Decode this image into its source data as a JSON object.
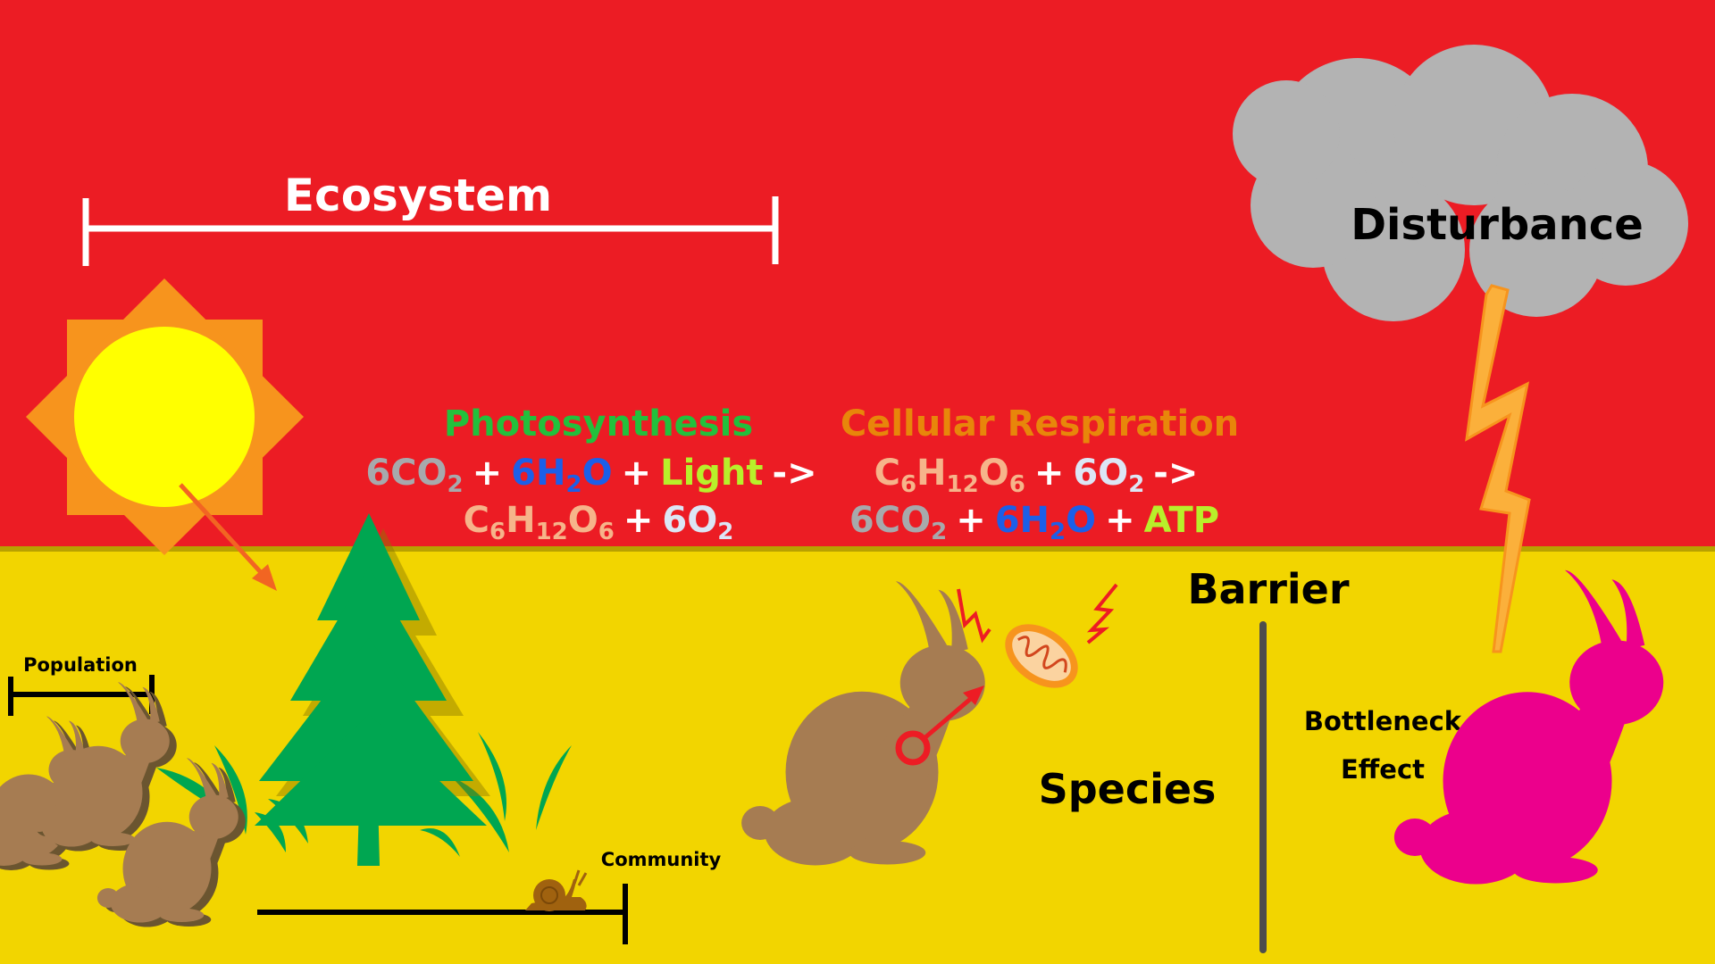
{
  "labels": {
    "ecosystem": "Ecosystem",
    "disturbance": "Disturbance",
    "barrier": "Barrier",
    "population": "Population",
    "community": "Community",
    "species": "Species",
    "bottleneck_line1": "Bottleneck",
    "bottleneck_line2": "Effect"
  },
  "photosynthesis": {
    "title": "Photosynthesis",
    "co2": "6CO",
    "co2_sub": "2",
    "plus": "+",
    "h2o_a": "6H",
    "h2o_sub": "2",
    "h2o_b": "O",
    "light": "Light",
    "arrow": "->",
    "glu_c": "C",
    "glu_c_sub": "6",
    "glu_h": "H",
    "glu_h_sub": "12",
    "glu_o": "O",
    "glu_o_sub": "6",
    "o2": "6O",
    "o2_sub": "2"
  },
  "respiration": {
    "title": "Cellular Respiration",
    "glu_c": "C",
    "glu_c_sub": "6",
    "glu_h": "H",
    "glu_h_sub": "12",
    "glu_o": "O",
    "glu_o_sub": "6",
    "plus": "+",
    "o2": "6O",
    "o2_sub": "2",
    "arrow": "->",
    "co2": "6CO",
    "co2_sub": "2",
    "h2o_a": "6H",
    "h2o_sub": "2",
    "h2o_b": "O",
    "atp": "ATP"
  },
  "colors": {
    "sky": "#ec1c24",
    "ground": "#f2d500",
    "photosynthesis_title": "#22c03c",
    "respiration_title": "#e8860a",
    "co2": "#a7a9ac",
    "h2o": "#1c5fe8",
    "light_atp": "#b8f02a",
    "glucose": "#f6b48a",
    "o2": "#dce6f5",
    "rabbit": "#a67c52",
    "bottleneck_rabbit": "#ec008c",
    "tree": "#00a651",
    "cloud": "#b3b3b3",
    "sun": "#ffff00",
    "sun_rays": "#f7941d"
  }
}
